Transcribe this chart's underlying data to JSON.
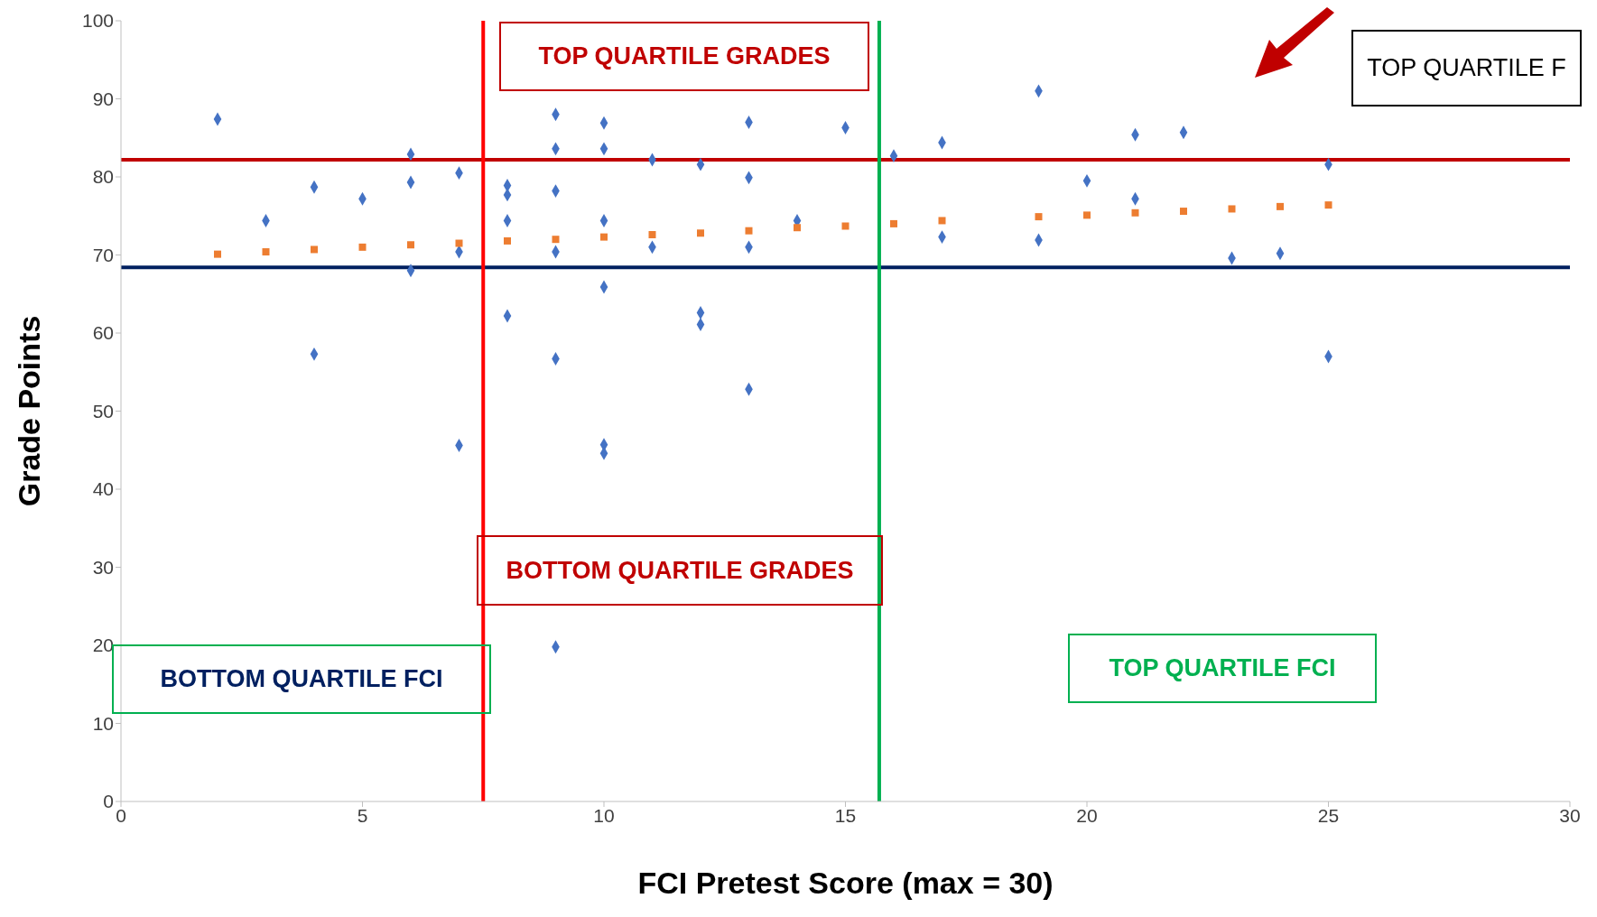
{
  "chart_data": {
    "type": "scatter",
    "xlabel": "FCI Pretest Score (max = 30)",
    "ylabel": "Grade Points",
    "xlim": [
      0,
      30
    ],
    "xticks": [
      0,
      5,
      10,
      15,
      20,
      25,
      30
    ],
    "ylim": [
      0,
      100
    ],
    "yticks": [
      0,
      10,
      20,
      30,
      40,
      50,
      60,
      70,
      80,
      90,
      100
    ],
    "grid": false,
    "legend": false,
    "series": [
      {
        "type": "scatter",
        "color": "#4472c4",
        "marker": "diamond",
        "x": [
          2,
          3,
          4,
          4,
          5,
          6,
          6,
          6,
          7,
          7,
          7,
          8,
          8,
          8,
          8,
          9,
          9,
          9,
          9,
          9,
          9,
          10,
          10,
          10,
          10,
          10,
          10,
          11,
          11,
          12,
          12,
          12,
          13,
          13,
          13,
          13,
          14,
          15,
          16,
          17,
          17,
          19,
          19,
          20,
          21,
          21,
          22,
          23,
          24,
          25,
          25
        ],
        "values": [
          87.4,
          74.4,
          78.7,
          57.3,
          77.2,
          82.9,
          79.3,
          68,
          80.5,
          70.4,
          45.6,
          78.9,
          77.7,
          74.4,
          62.2,
          88,
          83.6,
          78.2,
          70.4,
          56.7,
          19.8,
          86.9,
          83.6,
          74.4,
          65.9,
          45.7,
          44.6,
          82.2,
          71,
          81.6,
          62.6,
          61.1,
          87,
          79.9,
          71,
          52.8,
          74.4,
          86.3,
          82.7,
          84.4,
          72.3,
          91,
          71.9,
          79.5,
          85.4,
          77.2,
          85.7,
          69.6,
          70.2,
          81.6,
          57
        ]
      },
      {
        "type": "scatter",
        "color": "#ed7d31",
        "marker": "square",
        "x": [
          2,
          3,
          4,
          5,
          6,
          7,
          8,
          9,
          10,
          11,
          12,
          13,
          14,
          15,
          16,
          17,
          19,
          20,
          21,
          22,
          23,
          24,
          25
        ],
        "values": [
          70.1,
          70.4,
          70.7,
          71,
          71.3,
          71.5,
          71.8,
          72,
          72.3,
          72.6,
          72.8,
          73.1,
          73.5,
          73.7,
          74,
          74.4,
          74.9,
          75.1,
          75.4,
          75.6,
          75.9,
          76.2,
          76.4
        ]
      }
    ],
    "ref_lines": [
      {
        "axis": "y",
        "value": 82.2,
        "color": "#c00000"
      },
      {
        "axis": "y",
        "value": 68.4,
        "color": "#002060"
      },
      {
        "axis": "x",
        "value": 7.5,
        "color": "#ff0000"
      },
      {
        "axis": "x",
        "value": 15.7,
        "color": "#00b050"
      }
    ],
    "annotations": [
      "TOP QUARTILE GRADES",
      "BOTTOM QUARTILE GRADES",
      "BOTTOM QUARTILE FCI",
      "TOP QUARTILE FCI",
      "TOP QUARTILE F"
    ]
  }
}
